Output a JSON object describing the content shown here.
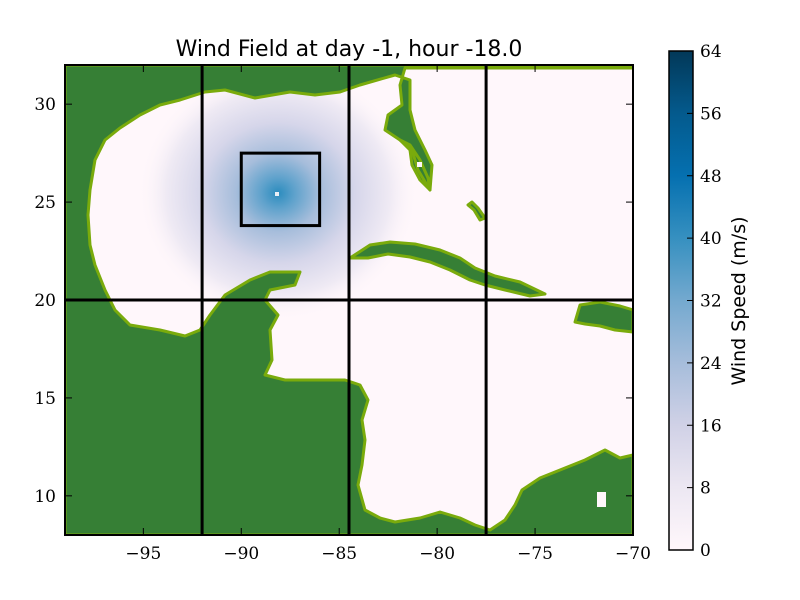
{
  "chart_data": {
    "type": "heatmap",
    "title": "Wind Field at day -1, hour -18.0",
    "xlabel": "",
    "ylabel": "",
    "xlim": [
      -99,
      -70
    ],
    "ylim": [
      8,
      32
    ],
    "xticks": [
      -95,
      -90,
      -85,
      -80,
      -75,
      -70
    ],
    "yticks": [
      10,
      15,
      20,
      25,
      30
    ],
    "grid_lines": {
      "vertical": [
        -92,
        -84.5,
        -77.5
      ],
      "horizontal": [
        20
      ]
    },
    "highlight_box": {
      "lon": [
        -90,
        -86
      ],
      "lat": [
        23.8,
        27.5
      ]
    },
    "wind_center": {
      "lon": -88,
      "lat": 25.5,
      "peak_speed": 40
    },
    "colorbar": {
      "label": "Wind Speed (m/s)",
      "min": 0,
      "max": 64,
      "ticks": [
        0,
        8,
        16,
        24,
        32,
        40,
        48,
        56,
        64
      ],
      "colors": [
        "#fff7fb",
        "#ece7f2",
        "#d0d1e6",
        "#a6bddb",
        "#74a9cf",
        "#3690c0",
        "#0570b0",
        "#045a8d",
        "#023858"
      ]
    },
    "land_colors": {
      "land": "#367f35",
      "coast": "#7aab0c"
    }
  }
}
